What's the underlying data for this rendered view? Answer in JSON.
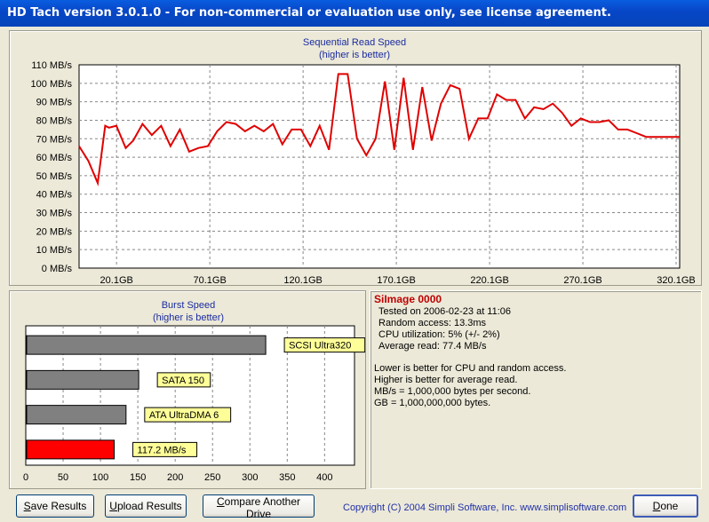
{
  "window": {
    "title": "HD Tach version 3.0.1.0  - For non-commercial or evaluation use only, see license agreement."
  },
  "read_chart": {
    "title": "Sequential Read Speed",
    "subtitle": "(higher is better)",
    "y_ticks": [
      "110 MB/s",
      "100 MB/s",
      "90 MB/s",
      "80 MB/s",
      "70 MB/s",
      "60 MB/s",
      "50 MB/s",
      "40 MB/s",
      "30 MB/s",
      "20 MB/s",
      "10 MB/s",
      "0 MB/s"
    ],
    "x_ticks": [
      "20.1GB",
      "70.1GB",
      "120.1GB",
      "170.1GB",
      "220.1GB",
      "270.1GB",
      "320.1GB"
    ],
    "line_color": "#e00000"
  },
  "burst_chart": {
    "title": "Burst Speed",
    "subtitle": "(higher is better)",
    "x_ticks": [
      "0",
      "50",
      "100",
      "150",
      "200",
      "250",
      "300",
      "350",
      "400"
    ]
  },
  "chart_data": [
    {
      "type": "line",
      "title": "Sequential Read Speed",
      "subtitle": "(higher is better)",
      "xlabel": "",
      "ylabel": "",
      "xlim": [
        0,
        322
      ],
      "ylim": [
        0,
        110
      ],
      "grid": true,
      "x": [
        0,
        5,
        10,
        14,
        16,
        20,
        25,
        29,
        34,
        39,
        44,
        49,
        54,
        59,
        64,
        69,
        74,
        79,
        84,
        89,
        94,
        99,
        104,
        109,
        114,
        119,
        124,
        129,
        134,
        139,
        144,
        149,
        154,
        159,
        164,
        169,
        174,
        179,
        184,
        189,
        194,
        199,
        204,
        209,
        214,
        219,
        224,
        229,
        234,
        239,
        244,
        249,
        254,
        259,
        264,
        269,
        274,
        279,
        284,
        289,
        294,
        299,
        304,
        309,
        314,
        319,
        322
      ],
      "y": [
        66,
        58,
        46,
        77,
        76,
        77,
        65,
        69,
        78,
        72,
        77,
        66,
        75,
        63,
        65,
        66,
        74,
        79,
        78,
        74,
        77,
        74,
        78,
        67,
        75,
        75,
        66,
        77,
        64,
        105,
        105,
        70,
        61,
        70,
        101,
        64,
        103,
        64,
        98,
        69,
        89,
        99,
        97,
        70,
        81,
        81,
        94,
        91,
        91,
        81,
        87,
        86,
        89,
        84,
        77,
        81,
        79,
        79,
        80,
        75,
        75,
        73,
        71,
        71,
        71,
        71,
        71
      ],
      "series": [
        {
          "name": "",
          "color": "#e00000"
        }
      ]
    },
    {
      "type": "bar",
      "title": "Burst Speed",
      "subtitle": "(higher is better)",
      "categories": [
        "SCSI Ultra320",
        "SATA 150",
        "ATA UltraDMA 6",
        "117.2 MB/s"
      ],
      "values": [
        320,
        150,
        133,
        117.2
      ],
      "colors": [
        "#808080",
        "#808080",
        "#808080",
        "#ff0000"
      ],
      "xlim": [
        0,
        440
      ],
      "grid": true
    }
  ],
  "info": {
    "title": "SiImage 0000",
    "lines": [
      "Tested on 2006-02-23 at 11:06",
      "Random access: 13.3ms",
      "CPU utilization: 5% (+/- 2%)",
      "Average read: 77.4 MB/s"
    ],
    "notes": [
      "Lower is better for CPU and random access.",
      "Higher is better for average read.",
      "MB/s = 1,000,000 bytes per second.",
      "GB = 1,000,000,000 bytes."
    ]
  },
  "buttons": {
    "save_hot": "S",
    "save_rest": "ave Results",
    "upload_hot": "U",
    "upload_rest": "pload Results",
    "compare_hot": "C",
    "compare_rest": "ompare Another Drive",
    "done_hot": "D",
    "done_rest": "one"
  },
  "footer": {
    "copyright": "Copyright (C) 2004 Simpli Software, Inc. www.simplisoftware.com"
  }
}
